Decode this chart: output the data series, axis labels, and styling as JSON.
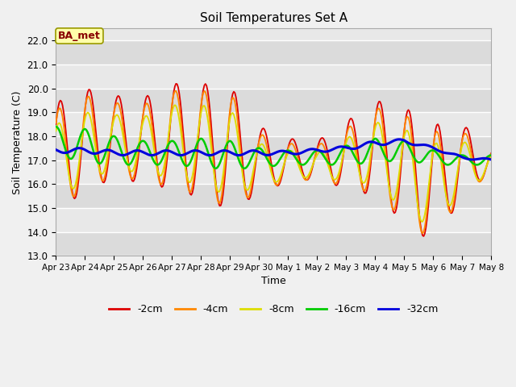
{
  "title": "Soil Temperatures Set A",
  "xlabel": "Time",
  "ylabel": "Soil Temperature (C)",
  "ylim": [
    13.0,
    22.5
  ],
  "yticks": [
    13.0,
    14.0,
    15.0,
    16.0,
    17.0,
    18.0,
    19.0,
    20.0,
    21.0,
    22.0
  ],
  "annotation": "BA_met",
  "series_colors": {
    "-2cm": "#dd0000",
    "-4cm": "#ff8800",
    "-8cm": "#dddd00",
    "-16cm": "#00cc00",
    "-32cm": "#0000dd"
  },
  "series_lw": {
    "-2cm": 1.3,
    "-4cm": 1.3,
    "-8cm": 1.3,
    "-16cm": 1.8,
    "-32cm": 2.2
  },
  "x_tick_labels": [
    "Apr 23",
    "Apr 24",
    "Apr 25",
    "Apr 26",
    "Apr 27",
    "Apr 28",
    "Apr 29",
    "Apr 30",
    "May 1",
    "May 2",
    "May 3",
    "May 4",
    "May 5",
    "May 6",
    "May 7",
    "May 8"
  ],
  "fig_bg": "#f0f0f0",
  "plot_bg": "#e8e8e8",
  "grid_color": "#ffffff",
  "n_points": 400
}
